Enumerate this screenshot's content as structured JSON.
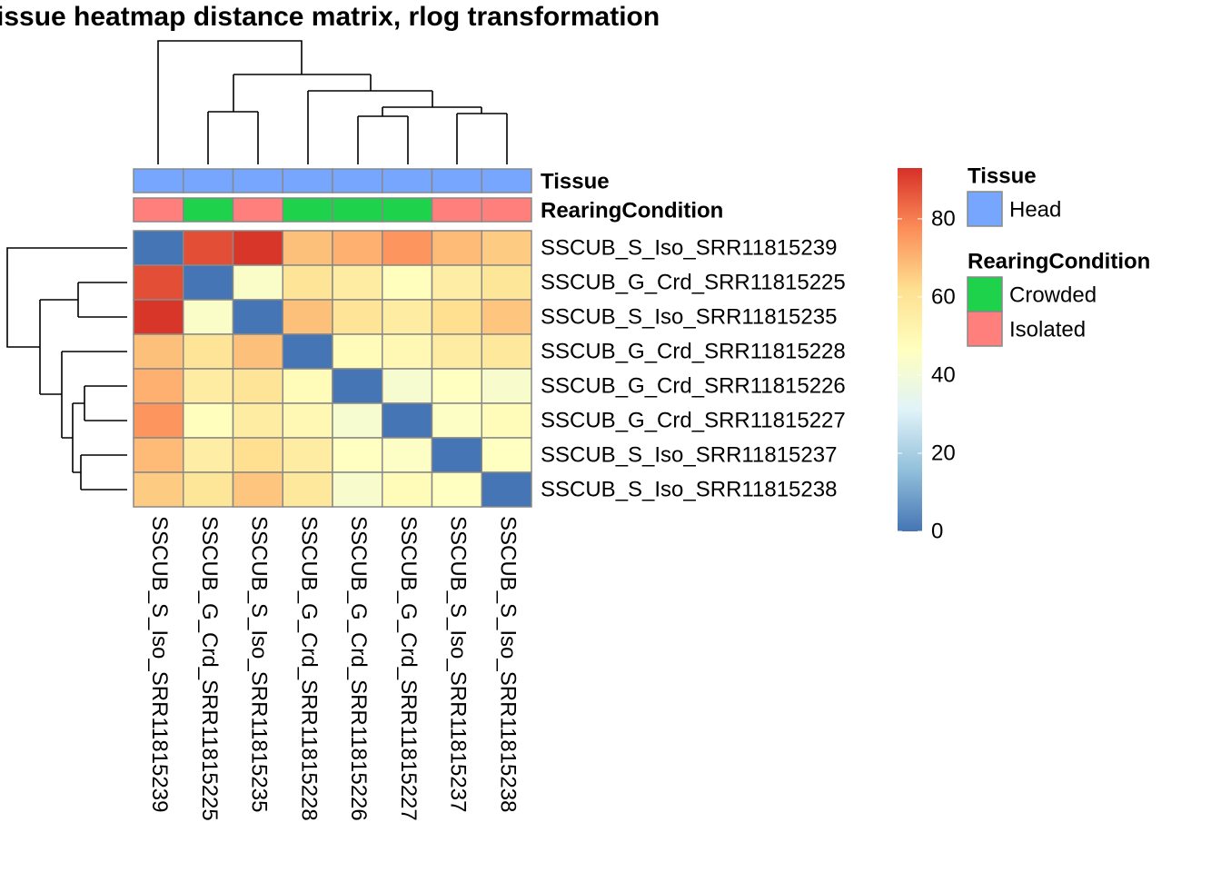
{
  "chart_data": {
    "type": "heatmap",
    "title": "issue heatmap distance matrix, rlog transformation",
    "rows": [
      "SSCUB_S_Iso_SRR11815239",
      "SSCUB_G_Crd_SRR11815225",
      "SSCUB_S_Iso_SRR11815235",
      "SSCUB_G_Crd_SRR11815228",
      "SSCUB_G_Crd_SRR11815226",
      "SSCUB_G_Crd_SRR11815227",
      "SSCUB_S_Iso_SRR11815237",
      "SSCUB_S_Iso_SRR11815238"
    ],
    "columns": [
      "SSCUB_S_Iso_SRR11815239",
      "SSCUB_G_Crd_SRR11815225",
      "SSCUB_S_Iso_SRR11815235",
      "SSCUB_G_Crd_SRR11815228",
      "SSCUB_G_Crd_SRR11815226",
      "SSCUB_G_Crd_SRR11815227",
      "SSCUB_S_Iso_SRR11815237",
      "SSCUB_S_Iso_SRR11815238"
    ],
    "values": [
      [
        0,
        88,
        92,
        68,
        71,
        76,
        69,
        66
      ],
      [
        88,
        0,
        44,
        60,
        56,
        47,
        55,
        59
      ],
      [
        92,
        44,
        0,
        68,
        60,
        56,
        62,
        67
      ],
      [
        68,
        60,
        68,
        0,
        48,
        50,
        56,
        58
      ],
      [
        71,
        56,
        60,
        48,
        0,
        42,
        46,
        43
      ],
      [
        76,
        47,
        56,
        50,
        42,
        0,
        45,
        48
      ],
      [
        69,
        55,
        62,
        56,
        46,
        45,
        0,
        46
      ],
      [
        66,
        59,
        67,
        58,
        43,
        48,
        46,
        0
      ]
    ],
    "colors": [
      "#4575B4",
      "#91BFDB",
      "#E0F3F8",
      "#FFFFBF",
      "#FEE090",
      "#FC8D59",
      "#D73027"
    ],
    "clim": [
      0,
      93
    ],
    "cticks": [
      0,
      20,
      40,
      60,
      80
    ],
    "annotations": [
      {
        "name": "Tissue",
        "levels": [
          {
            "name": "Head",
            "color": "#77A6FF"
          }
        ],
        "values": [
          "Head",
          "Head",
          "Head",
          "Head",
          "Head",
          "Head",
          "Head",
          "Head"
        ]
      },
      {
        "name": "RearingCondition",
        "levels": [
          {
            "name": "Crowded",
            "color": "#1ED24C"
          },
          {
            "name": "Isolated",
            "color": "#FF7F7C"
          }
        ],
        "values": [
          "Isolated",
          "Crowded",
          "Isolated",
          "Crowded",
          "Crowded",
          "Crowded",
          "Isolated",
          "Isolated"
        ]
      }
    ]
  }
}
